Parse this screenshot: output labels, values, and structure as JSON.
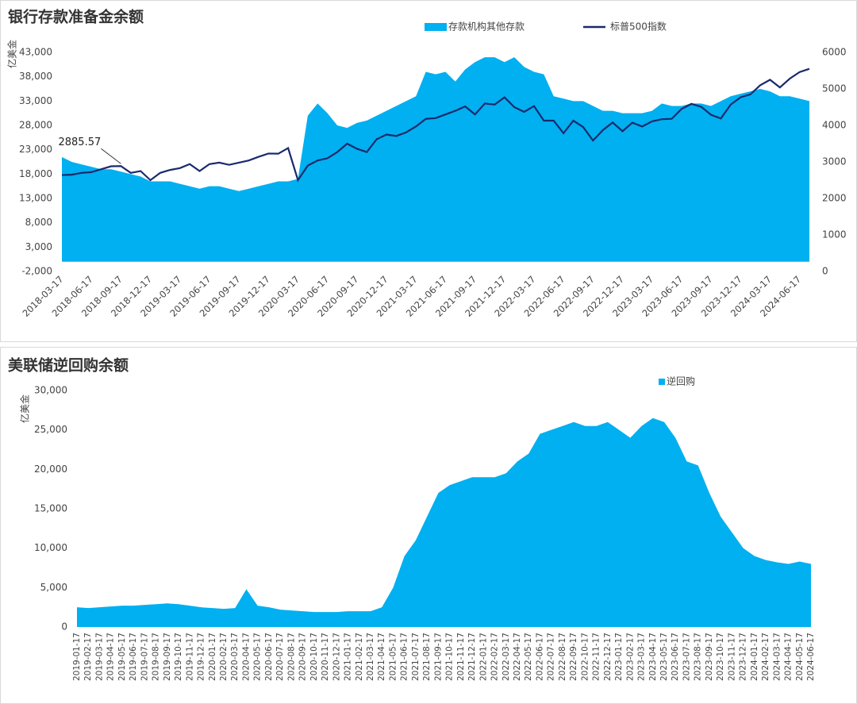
{
  "chart_data": [
    {
      "type": "combo",
      "title": "银行存款准备金余额",
      "y_label": "亿美金",
      "categories": [
        "2018-03-17",
        null,
        null,
        "2018-06-17",
        null,
        null,
        "2018-09-17",
        null,
        null,
        "2018-12-17",
        null,
        null,
        "2019-03-17",
        null,
        null,
        "2019-06-17",
        null,
        null,
        "2019-09-17",
        null,
        null,
        "2019-12-17",
        null,
        null,
        "2020-03-17",
        null,
        null,
        "2020-06-17",
        null,
        null,
        "2020-09-17",
        null,
        null,
        "2020-12-17",
        null,
        null,
        "2021-03-17",
        null,
        null,
        "2021-06-17",
        null,
        null,
        "2021-09-17",
        null,
        null,
        "2021-12-17",
        null,
        null,
        "2022-03-17",
        null,
        null,
        "2022-06-17",
        null,
        null,
        "2022-09-17",
        null,
        null,
        "2022-12-17",
        null,
        null,
        "2023-03-17",
        null,
        null,
        "2023-06-17",
        null,
        null,
        "2023-09-17",
        null,
        null,
        "2023-12-17",
        null,
        null,
        "2024-03-17",
        null,
        null,
        "2024-06-17",
        null
      ],
      "series": [
        {
          "name": "存款机构其他存款",
          "type": "area",
          "color": "#00b0f0",
          "values": [
            21500,
            20500,
            20000,
            19500,
            19000,
            19000,
            18500,
            18000,
            17500,
            16500,
            16500,
            16500,
            16000,
            15500,
            15000,
            15500,
            15500,
            15000,
            14500,
            15000,
            15500,
            16000,
            16500,
            16500,
            17000,
            30000,
            32500,
            30500,
            28000,
            27500,
            28500,
            29000,
            30000,
            31000,
            32000,
            33000,
            34000,
            39000,
            38500,
            39000,
            37000,
            39500,
            41000,
            42000,
            42000,
            41000,
            42000,
            40000,
            39000,
            38500,
            34000,
            33500,
            33000,
            33000,
            32000,
            31000,
            31000,
            30500,
            30500,
            30500,
            31000,
            32500,
            32000,
            32000,
            32500,
            32500,
            32000,
            33000,
            34000,
            34500,
            35000,
            35500,
            35000,
            34000,
            34000,
            33500,
            33000
          ]
        },
        {
          "name": "标普500指数",
          "type": "line",
          "axis": "y2",
          "color": "#1a2a6c",
          "values": [
            2640,
            2650,
            2700,
            2720,
            2800,
            2880,
            2885.57,
            2700,
            2750,
            2500,
            2700,
            2780,
            2830,
            2940,
            2750,
            2940,
            2980,
            2920,
            2980,
            3040,
            3140,
            3230,
            3225,
            3380,
            2500,
            2900,
            3040,
            3100,
            3270,
            3500,
            3360,
            3270,
            3620,
            3750,
            3710,
            3810,
            3970,
            4180,
            4200,
            4300,
            4400,
            4520,
            4300,
            4600,
            4570,
            4770,
            4500,
            4370,
            4530,
            4130,
            4130,
            3785,
            4130,
            3955,
            3585,
            3870,
            4080,
            3840,
            4075,
            3970,
            4110,
            4170,
            4180,
            4450,
            4590,
            4510,
            4290,
            4190,
            4570,
            4770,
            4850,
            5100,
            5250,
            5040,
            5280,
            5460,
            5550
          ],
          "value_labels": [
            null,
            null,
            null,
            null,
            null,
            null,
            "2885.57",
            null,
            null,
            null,
            null,
            null,
            null,
            null,
            null,
            null,
            null,
            null,
            null,
            null,
            null,
            null,
            null,
            null,
            null,
            null,
            null,
            null,
            null,
            null,
            null,
            null,
            null,
            null,
            null,
            null,
            null,
            null,
            null,
            null,
            null,
            null,
            null,
            null,
            null,
            null,
            null,
            null,
            null,
            null,
            null,
            null,
            null,
            null,
            null,
            null,
            null,
            null,
            null,
            null,
            null,
            null,
            null,
            null,
            null,
            null,
            null,
            null,
            null,
            null,
            null,
            null,
            null,
            null,
            null,
            null,
            null
          ]
        }
      ],
      "ylim": [
        -2000,
        43000
      ],
      "yticks": [
        {
          "value": -2000,
          "label": "-2,000"
        },
        {
          "value": 3000,
          "label": "3,000"
        },
        {
          "value": 8000,
          "label": "8,000"
        },
        {
          "value": 13000,
          "label": "13,000"
        },
        {
          "value": 18000,
          "label": "18,000"
        },
        {
          "value": 23000,
          "label": "23,000"
        },
        {
          "value": 28000,
          "label": "28,000"
        },
        {
          "value": 33000,
          "label": "33,000"
        },
        {
          "value": 38000,
          "label": "38,000"
        },
        {
          "value": 43000,
          "label": "43,000"
        }
      ],
      "y2lim": [
        0,
        6000
      ],
      "y2ticks": [
        0,
        1000,
        2000,
        3000,
        4000,
        5000,
        6000
      ],
      "grid": false
    },
    {
      "type": "area",
      "title": "美联储逆回购余额",
      "y_label": "亿美金",
      "categories": [
        "2019-01-17",
        "2019-02-17",
        "2019-03-17",
        "2019-04-17",
        "2019-05-17",
        "2019-06-17",
        "2019-07-17",
        "2019-08-17",
        "2019-09-17",
        "2019-10-17",
        "2019-11-17",
        "2019-12-17",
        "2020-01-17",
        "2020-02-17",
        "2020-03-17",
        "2020-04-17",
        "2020-05-17",
        "2020-06-17",
        "2020-07-17",
        "2020-08-17",
        "2020-09-17",
        "2020-10-17",
        "2020-11-17",
        "2020-12-17",
        "2021-01-17",
        "2021-02-17",
        "2021-03-17",
        "2021-04-17",
        "2021-05-17",
        "2021-06-17",
        "2021-07-17",
        "2021-08-17",
        "2021-09-17",
        "2021-10-17",
        "2021-11-17",
        "2021-12-17",
        "2022-01-17",
        "2022-02-17",
        "2022-03-17",
        "2022-04-17",
        "2022-05-17",
        "2022-06-17",
        "2022-07-17",
        "2022-08-17",
        "2022-09-17",
        "2022-10-17",
        "2022-11-17",
        "2022-12-17",
        "2023-01-17",
        "2023-02-17",
        "2023-03-17",
        "2023-04-17",
        "2023-05-17",
        "2023-06-17",
        "2023-07-17",
        "2023-08-17",
        "2023-09-17",
        "2023-10-17",
        "2023-11-17",
        "2023-12-17",
        "2024-01-17",
        "2024-02-17",
        "2024-03-17",
        "2024-04-17",
        "2024-05-17",
        "2024-06-17"
      ],
      "series": [
        {
          "name": "逆回购",
          "type": "area",
          "color": "#00b0f0",
          "values": [
            2500,
            2400,
            2500,
            2600,
            2700,
            2700,
            2800,
            2900,
            3000,
            2900,
            2700,
            2500,
            2400,
            2300,
            2400,
            4800,
            2700,
            2500,
            2200,
            2100,
            2000,
            1900,
            1900,
            1900,
            2000,
            2000,
            2000,
            2500,
            5000,
            9000,
            11000,
            14000,
            17000,
            18000,
            18500,
            19000,
            19000,
            19000,
            19500,
            21000,
            22000,
            24500,
            25000,
            25500,
            26000,
            25500,
            25500,
            26000,
            25000,
            24000,
            25500,
            26500,
            26000,
            24000,
            21000,
            20500,
            17000,
            14000,
            12000,
            10000,
            9000,
            8500,
            8200,
            8000,
            8300,
            8000
          ]
        }
      ],
      "ylim": [
        0,
        30000
      ],
      "yticks": [
        0,
        {
          "value": 5000,
          "label": "5,000"
        },
        {
          "value": 10000,
          "label": "10,000"
        },
        {
          "value": 15000,
          "label": "15,000"
        },
        {
          "value": 20000,
          "label": "20,000"
        },
        {
          "value": 25000,
          "label": "25,000"
        },
        {
          "value": 30000,
          "label": "30,000"
        }
      ],
      "grid": false
    }
  ]
}
